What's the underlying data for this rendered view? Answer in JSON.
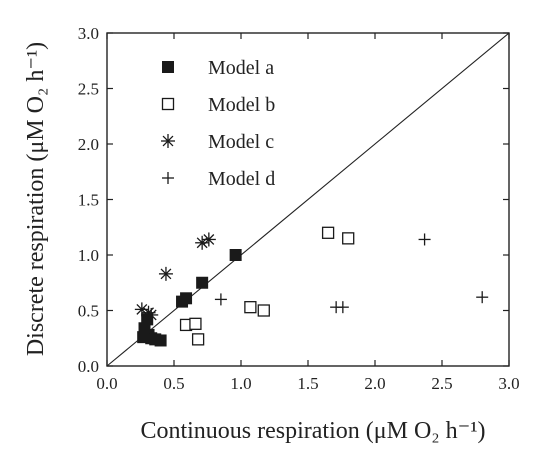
{
  "chart_data": {
    "type": "scatter",
    "xlabel": "Continuous respiration (μM O₂ h⁻¹)",
    "ylabel": "Discrete respiration (μM O₂ h⁻¹)",
    "xlim": [
      0.0,
      3.0
    ],
    "ylim": [
      0.0,
      3.0
    ],
    "x_ticks": [
      "0.0",
      "0.5",
      "1.0",
      "1.5",
      "2.0",
      "2.5",
      "3.0"
    ],
    "y_ticks": [
      "0.0",
      "0.5",
      "1.0",
      "1.5",
      "2.0",
      "2.5",
      "3.0"
    ],
    "grid": false,
    "identity_line": true,
    "legend_position": "top-left",
    "series": [
      {
        "name": "Model a",
        "marker": "filled-square",
        "points": [
          [
            0.27,
            0.26
          ],
          [
            0.28,
            0.34
          ],
          [
            0.3,
            0.42
          ],
          [
            0.31,
            0.28
          ],
          [
            0.33,
            0.25
          ],
          [
            0.36,
            0.24
          ],
          [
            0.4,
            0.23
          ],
          [
            0.56,
            0.58
          ],
          [
            0.59,
            0.61
          ],
          [
            0.71,
            0.75
          ],
          [
            0.96,
            1.0
          ]
        ]
      },
      {
        "name": "Model b",
        "marker": "open-square",
        "points": [
          [
            0.59,
            0.37
          ],
          [
            0.66,
            0.38
          ],
          [
            0.68,
            0.24
          ],
          [
            1.07,
            0.53
          ],
          [
            1.17,
            0.5
          ],
          [
            1.65,
            1.2
          ],
          [
            1.8,
            1.15
          ]
        ]
      },
      {
        "name": "Model c",
        "marker": "asterisk",
        "points": [
          [
            0.26,
            0.51
          ],
          [
            0.31,
            0.48
          ],
          [
            0.33,
            0.46
          ],
          [
            0.44,
            0.83
          ],
          [
            0.71,
            1.11
          ],
          [
            0.76,
            1.14
          ]
        ]
      },
      {
        "name": "Model d",
        "marker": "plus",
        "points": [
          [
            0.85,
            0.6
          ],
          [
            1.71,
            0.53
          ],
          [
            1.76,
            0.53
          ],
          [
            2.37,
            1.14
          ],
          [
            2.8,
            0.62
          ]
        ]
      }
    ]
  }
}
